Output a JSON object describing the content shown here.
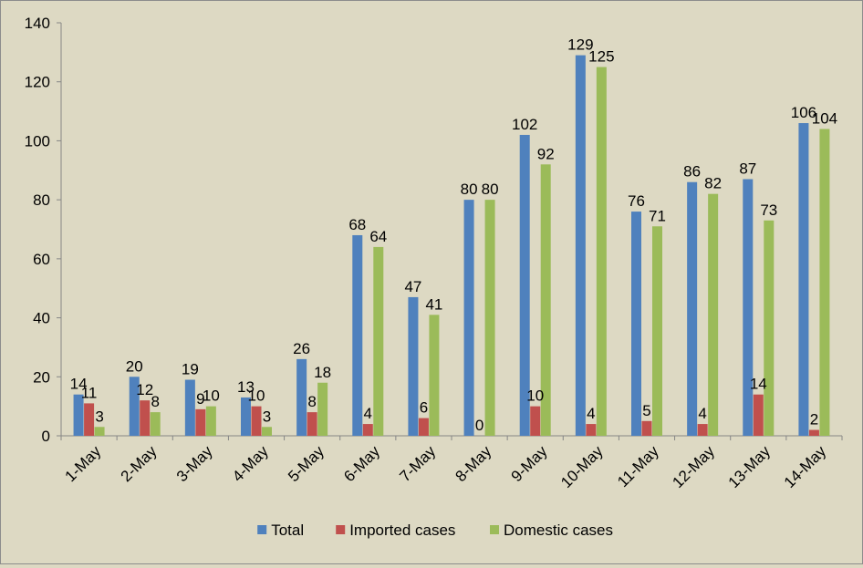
{
  "chart_data": {
    "type": "bar",
    "categories": [
      "1-May",
      "2-May",
      "3-May",
      "4-May",
      "5-May",
      "6-May",
      "7-May",
      "8-May",
      "9-May",
      "10-May",
      "11-May",
      "12-May",
      "13-May",
      "14-May"
    ],
    "series": [
      {
        "name": "Total",
        "color": "#4f81bd",
        "values": [
          14,
          20,
          19,
          13,
          26,
          68,
          47,
          80,
          102,
          129,
          76,
          86,
          87,
          106
        ]
      },
      {
        "name": "Imported cases",
        "color": "#c0504d",
        "values": [
          11,
          12,
          9,
          10,
          8,
          4,
          6,
          0,
          10,
          4,
          5,
          4,
          14,
          2
        ]
      },
      {
        "name": "Domestic cases",
        "color": "#9bbb59",
        "values": [
          3,
          8,
          10,
          3,
          18,
          64,
          41,
          80,
          92,
          125,
          71,
          82,
          73,
          104
        ]
      }
    ],
    "ylim": [
      0,
      140
    ],
    "yticks": [
      0,
      20,
      40,
      60,
      80,
      100,
      120,
      140
    ],
    "gridlines": false,
    "legend_position": "bottom",
    "title": "",
    "xlabel": "",
    "ylabel": ""
  }
}
